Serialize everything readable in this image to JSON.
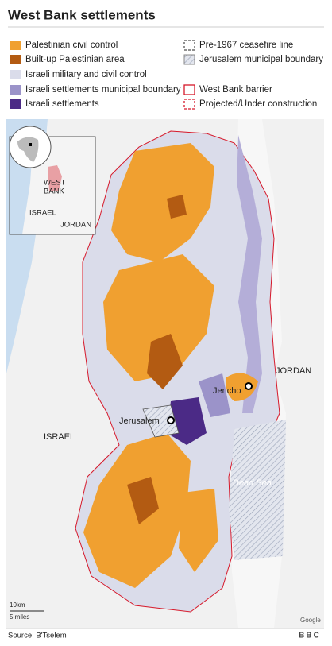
{
  "header": {
    "title": "West Bank settlements"
  },
  "legend": {
    "items": [
      {
        "label": "Palestinian civil control"
      },
      {
        "label": "Built-up Palestinian area"
      },
      {
        "label": "Israeli military and civil control"
      },
      {
        "label": "Israeli settlements municipal boundary"
      },
      {
        "label": "Israeli settlements"
      },
      {
        "label": "Pre-1967 ceasefire line"
      },
      {
        "label": "Jerusalem municipal boundary"
      },
      {
        "label": "West Bank barrier"
      },
      {
        "label": "Projected/Under construction"
      }
    ]
  },
  "inset": {
    "labels": [
      "WEST",
      "BANK",
      "ISRAEL",
      "JORDAN"
    ]
  },
  "map": {
    "labels": {
      "jordan": "JORDAN",
      "jericho": "Jericho",
      "jerusalem": "Jerusalem",
      "israel": "ISRAEL",
      "dead_sea": "Dead Sea"
    }
  },
  "scale": {
    "km": "10km",
    "miles": "5 miles"
  },
  "attribution": "Google",
  "footer": {
    "source": "Source: B'Tselem",
    "logo": "BBC"
  }
}
